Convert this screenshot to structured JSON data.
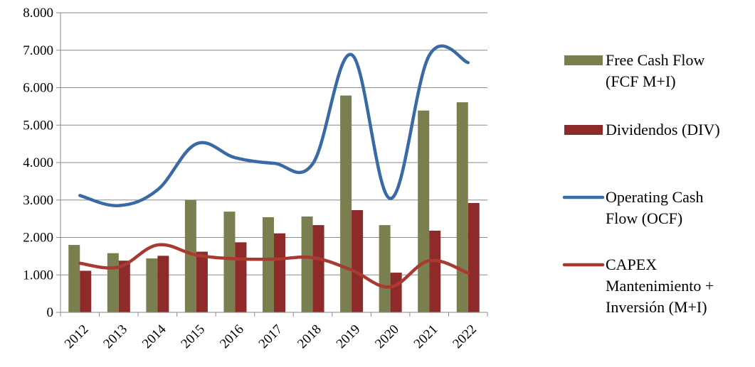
{
  "chart_data": {
    "type": "bar",
    "categories": [
      "2012",
      "2013",
      "2014",
      "2015",
      "2016",
      "2017",
      "2018",
      "2019",
      "2020",
      "2021",
      "2022"
    ],
    "y_ticks": [
      "0",
      "1.000",
      "2.000",
      "3.000",
      "4.000",
      "5.000",
      "6.000",
      "7.000",
      "8.000"
    ],
    "ylim": [
      0,
      8000
    ],
    "grid": true,
    "legend_position": "right",
    "series": [
      {
        "name": "Free Cash Flow (FCF M+I)",
        "type": "bar",
        "color": "#7b7f4f",
        "legend_lines": [
          "Free Cash Flow",
          "(FCF M+I)"
        ],
        "values": [
          1800,
          1580,
          1440,
          3000,
          2690,
          2540,
          2560,
          5790,
          2330,
          5390,
          5610
        ]
      },
      {
        "name": "Dividendos (DIV)",
        "type": "bar",
        "color": "#8e2a2a",
        "legend_lines": [
          "Dividendos (DIV)"
        ],
        "values": [
          1110,
          1380,
          1510,
          1620,
          1870,
          2110,
          2330,
          2730,
          1060,
          2180,
          2920
        ]
      },
      {
        "name": "Operating Cash Flow (OCF)",
        "type": "line",
        "color": "#3a6aa6",
        "legend_lines": [
          "Operating Cash",
          "Flow (OCF)"
        ],
        "values": [
          3120,
          2850,
          3270,
          4500,
          4130,
          3980,
          3970,
          6880,
          3040,
          6860,
          6670
        ]
      },
      {
        "name": "CAPEX Mantenimiento + Inversión (M+I)",
        "type": "line",
        "color": "#a83a32",
        "legend_lines": [
          "CAPEX",
          "Mantenimiento +",
          "Inversión (M+I)"
        ],
        "values": [
          1310,
          1210,
          1800,
          1530,
          1430,
          1420,
          1460,
          1130,
          680,
          1380,
          1050
        ]
      }
    ]
  }
}
